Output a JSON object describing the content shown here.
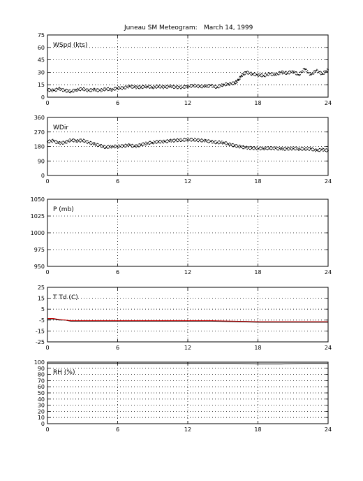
{
  "title": {
    "left": "Juneau SM Meteogram:",
    "right": "March 14, 1999"
  },
  "chart_data": [
    {
      "type": "scatter",
      "label": "WSpd (kts)",
      "xlim": [
        0,
        24
      ],
      "ylim": [
        0,
        75
      ],
      "xticks": [
        0,
        6,
        12,
        18,
        24
      ],
      "yticks": [
        0,
        15,
        30,
        45,
        60,
        75
      ],
      "grid": true,
      "series": [
        {
          "marker": "dot",
          "color": "#000000",
          "x": [
            0,
            0.5,
            1,
            1.5,
            2,
            2.5,
            3,
            3.5,
            4,
            4.5,
            5,
            5.5,
            6,
            6.5,
            7,
            7.5,
            8,
            8.5,
            9,
            9.5,
            10,
            10.5,
            11,
            11.5,
            12,
            12.5,
            13,
            13.5,
            14,
            14.5,
            15,
            15.5,
            16,
            16.3,
            16.6,
            17,
            17.5,
            18,
            18.5,
            19,
            19.5,
            20,
            20.5,
            21,
            21.5,
            22,
            22.5,
            23,
            23.5,
            24
          ],
          "y": [
            9,
            8,
            10,
            8,
            7,
            9,
            10,
            8,
            9,
            8,
            10,
            9,
            11,
            11,
            13,
            12,
            12,
            13,
            12,
            13,
            12,
            13,
            12,
            12,
            13,
            14,
            13,
            13,
            14,
            12,
            15,
            16,
            17,
            20,
            26,
            30,
            28,
            27,
            26,
            28,
            27,
            30,
            29,
            31,
            27,
            34,
            27,
            32,
            28,
            33
          ]
        }
      ]
    },
    {
      "type": "scatter",
      "label": "WDir",
      "xlim": [
        0,
        24
      ],
      "ylim": [
        0,
        360
      ],
      "xticks": [
        0,
        6,
        12,
        18,
        24
      ],
      "yticks": [
        0,
        90,
        180,
        270,
        360
      ],
      "grid": true,
      "series": [
        {
          "marker": "dot",
          "color": "#000000",
          "x": [
            0,
            0.5,
            1,
            1.5,
            2,
            2.5,
            3,
            3.5,
            4,
            4.5,
            5,
            5.5,
            6,
            6.5,
            7,
            7.5,
            8,
            8.5,
            9,
            9.5,
            10,
            10.5,
            11,
            11.5,
            12,
            12.5,
            13,
            13.5,
            14,
            14.5,
            15,
            15.5,
            16,
            16.5,
            17,
            17.5,
            18,
            18.5,
            19,
            19.5,
            20,
            20.5,
            21,
            21.5,
            22,
            22.5,
            23,
            23.5,
            24
          ],
          "y": [
            210,
            215,
            200,
            205,
            220,
            215,
            218,
            205,
            195,
            185,
            175,
            180,
            180,
            183,
            188,
            180,
            190,
            200,
            205,
            210,
            210,
            215,
            218,
            220,
            222,
            222,
            218,
            215,
            210,
            205,
            205,
            195,
            185,
            178,
            172,
            170,
            168,
            168,
            170,
            168,
            165,
            165,
            168,
            165,
            165,
            165,
            155,
            160,
            155
          ]
        }
      ]
    },
    {
      "type": "line",
      "label": "P (mb)",
      "xlim": [
        0,
        24
      ],
      "ylim": [
        950,
        1050
      ],
      "xticks": [
        0,
        6,
        12,
        18,
        24
      ],
      "yticks": [
        950,
        975,
        1000,
        1025,
        1050
      ],
      "grid": true,
      "series": []
    },
    {
      "type": "line",
      "label": "T Td (C)",
      "xlim": [
        0,
        24
      ],
      "ylim": [
        -25,
        25
      ],
      "xticks": [
        0,
        6,
        12,
        18,
        24
      ],
      "yticks": [
        -25,
        -15,
        -5,
        5,
        15,
        25
      ],
      "grid": true,
      "series": [
        {
          "color": "#000000",
          "x": [
            0,
            0.5,
            1,
            1.5,
            2,
            4,
            6,
            8,
            10,
            12,
            14,
            16,
            18,
            20,
            22,
            24
          ],
          "y": [
            -4,
            -4,
            -5,
            -5,
            -6,
            -6,
            -6,
            -6,
            -6,
            -6,
            -6,
            -6.5,
            -7,
            -7,
            -7,
            -7
          ]
        },
        {
          "color": "#cc0000",
          "x": [
            0,
            0.5,
            1,
            1.5,
            2,
            4,
            6,
            8,
            10,
            12,
            14,
            16,
            18,
            20,
            22,
            24
          ],
          "y": [
            -3.5,
            -3.5,
            -4.5,
            -5,
            -5.5,
            -5.5,
            -5.5,
            -5.5,
            -5.5,
            -5.5,
            -5.5,
            -6,
            -6.5,
            -6.5,
            -6.5,
            -6.5
          ]
        }
      ]
    },
    {
      "type": "line",
      "label": "RH (%)",
      "xlim": [
        0,
        24
      ],
      "ylim": [
        0,
        100
      ],
      "xticks": [
        0,
        6,
        12,
        18,
        24
      ],
      "yticks": [
        0,
        10,
        20,
        30,
        40,
        50,
        60,
        70,
        80,
        90,
        100
      ],
      "grid": true,
      "series": [
        {
          "color": "#000000",
          "x": [
            0,
            2,
            4,
            6,
            8,
            10,
            12,
            14,
            16,
            18,
            20,
            22,
            24
          ],
          "y": [
            98,
            98,
            98,
            98,
            98,
            98,
            98,
            98,
            98,
            97,
            97,
            98,
            98
          ]
        }
      ]
    }
  ]
}
